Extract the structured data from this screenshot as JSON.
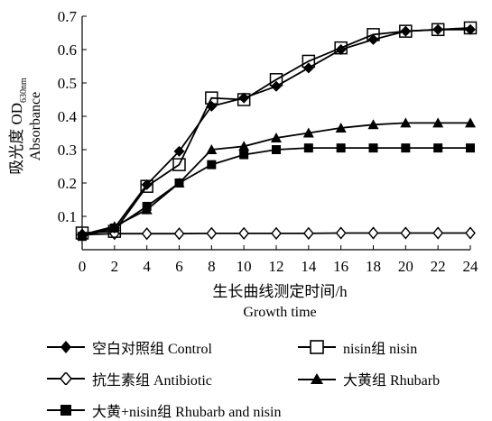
{
  "chart_data": {
    "type": "line",
    "ylabel_cn": "吸光度 OD",
    "ylabel_sub": "630nm",
    "ylabel_en": "Absorbance",
    "xlabel_cn": "生长曲线测定时间/h",
    "xlabel_en": "Growth time",
    "x": [
      0,
      2,
      4,
      6,
      8,
      10,
      12,
      14,
      16,
      18,
      20,
      22,
      24
    ],
    "xticks": [
      "0",
      "2",
      "4",
      "6",
      "8",
      "10",
      "12",
      "14",
      "16",
      "18",
      "20",
      "22",
      "24"
    ],
    "yticks": [
      "0.1",
      "0.2",
      "0.3",
      "0.4",
      "0.5",
      "0.6",
      "0.7"
    ],
    "xlim": [
      0,
      24
    ],
    "ylim": [
      0,
      0.7
    ],
    "grid": false,
    "legend_position": "bottom",
    "series": [
      {
        "name": "空白对照组 Control",
        "marker": "filled-diamond",
        "values": [
          0.045,
          0.065,
          0.195,
          0.295,
          0.43,
          0.455,
          0.49,
          0.545,
          0.6,
          0.63,
          0.655,
          0.66,
          0.66
        ]
      },
      {
        "name": "nisin组 nisin",
        "marker": "open-square",
        "values": [
          0.05,
          0.055,
          0.19,
          0.255,
          0.455,
          0.45,
          0.51,
          0.565,
          0.605,
          0.645,
          0.655,
          0.66,
          0.665
        ]
      },
      {
        "name": "抗生素组 Antibiotic",
        "marker": "open-diamond",
        "values": [
          0.045,
          0.048,
          0.048,
          0.048,
          0.049,
          0.049,
          0.049,
          0.049,
          0.05,
          0.05,
          0.05,
          0.05,
          0.05
        ]
      },
      {
        "name": "大黄组 Rhubarb",
        "marker": "filled-triangle",
        "values": [
          0.045,
          0.07,
          0.12,
          0.2,
          0.3,
          0.31,
          0.335,
          0.35,
          0.365,
          0.375,
          0.38,
          0.38,
          0.38
        ]
      },
      {
        "name": "大黄+nisin组 Rhubarb and nisin",
        "marker": "filled-square",
        "values": [
          0.04,
          0.065,
          0.13,
          0.2,
          0.255,
          0.285,
          0.3,
          0.305,
          0.305,
          0.305,
          0.305,
          0.305,
          0.305
        ]
      }
    ]
  }
}
